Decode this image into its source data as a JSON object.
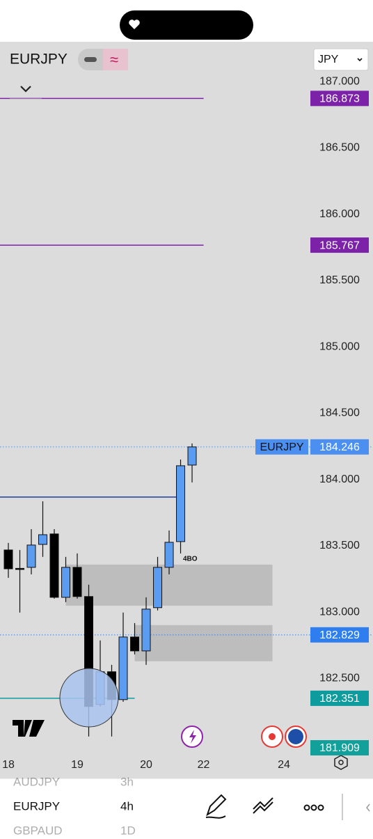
{
  "header": {
    "symbol": "EURJPY",
    "currency": "JPY"
  },
  "chart_data": {
    "type": "candlestick",
    "name": "EURJPY",
    "annotation": "4BO",
    "xlim": [
      -0.727,
      26.24
    ],
    "ylim": [
      181.92,
      187.3
    ],
    "xticks": [
      {
        "value": 0,
        "label": "18"
      },
      {
        "value": 6,
        "label": "19"
      },
      {
        "value": 12,
        "label": "20"
      },
      {
        "value": 17,
        "label": "22"
      },
      {
        "value": 24,
        "label": "24"
      }
    ],
    "yticks": [
      {
        "value": 187,
        "label": "187.000"
      },
      {
        "value": 186.5,
        "label": "186.500"
      },
      {
        "value": 186,
        "label": "186.000"
      },
      {
        "value": 185.5,
        "label": "185.500"
      },
      {
        "value": 185,
        "label": "185.000"
      },
      {
        "value": 184.5,
        "label": "184.500"
      },
      {
        "value": 184,
        "label": "184.000"
      },
      {
        "value": 183.5,
        "label": "183.500"
      },
      {
        "value": 183,
        "label": "183.000"
      },
      {
        "value": 182.5,
        "label": "182.500"
      }
    ],
    "up_color": "#5b9cf0",
    "down_color": "#000000",
    "open": [
      183.469,
      183.33,
      183.338,
      183.511,
      183.59,
      183.112,
      183.338,
      183.118,
      182.304,
      182.551,
      182.341,
      182.813,
      182.708,
      183.034,
      183.338,
      183.532,
      184.109
    ],
    "high": [
      183.522,
      183.469,
      183.626,
      183.836,
      183.626,
      183.417,
      183.443,
      183.207,
      182.787,
      182.603,
      182.997,
      182.918,
      183.112,
      183.417,
      183.616,
      184.151,
      184.272
    ],
    "low": [
      183.259,
      182.997,
      183.285,
      183.417,
      183.102,
      183.076,
      183.102,
      182.063,
      182.289,
      182.063,
      182.325,
      182.682,
      182.603,
      183.013,
      183.285,
      183.443,
      183.978
    ],
    "close": [
      183.327,
      183.325,
      183.506,
      183.584,
      183.112,
      183.338,
      183.118,
      182.289,
      182.551,
      182.341,
      182.813,
      182.708,
      183.023,
      183.338,
      183.527,
      184.104,
      184.246
    ],
    "levels": [
      {
        "value": 186.873,
        "color": "#7b22a8",
        "x_end": 17
      },
      {
        "value": 185.767,
        "color": "#7b22a8",
        "x_end": 17
      },
      {
        "value": 182.351,
        "color": "#0e9b9e",
        "x_end": 11
      }
    ],
    "lines": [
      {
        "value": 183.868,
        "color": "#1f3c9c",
        "x_end": 14.7
      }
    ],
    "price_lines": [
      {
        "value": 184.246,
        "color": "#4b8ff0",
        "name": "EURJPY"
      },
      {
        "value": 182.829,
        "color": "#2e7ef0"
      }
    ],
    "axis_labels": [
      {
        "value": 181.909,
        "color": "#12a09a"
      }
    ],
    "zones": [
      {
        "from": 183.049,
        "to": 183.359,
        "x_start": 5,
        "x_end": 23
      },
      {
        "from": 182.63,
        "to": 182.903,
        "x_start": 11,
        "x_end": 23
      }
    ]
  },
  "watchlist": [
    {
      "symbol": "AUDJPY",
      "interval": "3h"
    },
    {
      "symbol": "EURJPY",
      "interval": "4h"
    },
    {
      "symbol": "GBPAUD",
      "interval": "1D"
    }
  ]
}
